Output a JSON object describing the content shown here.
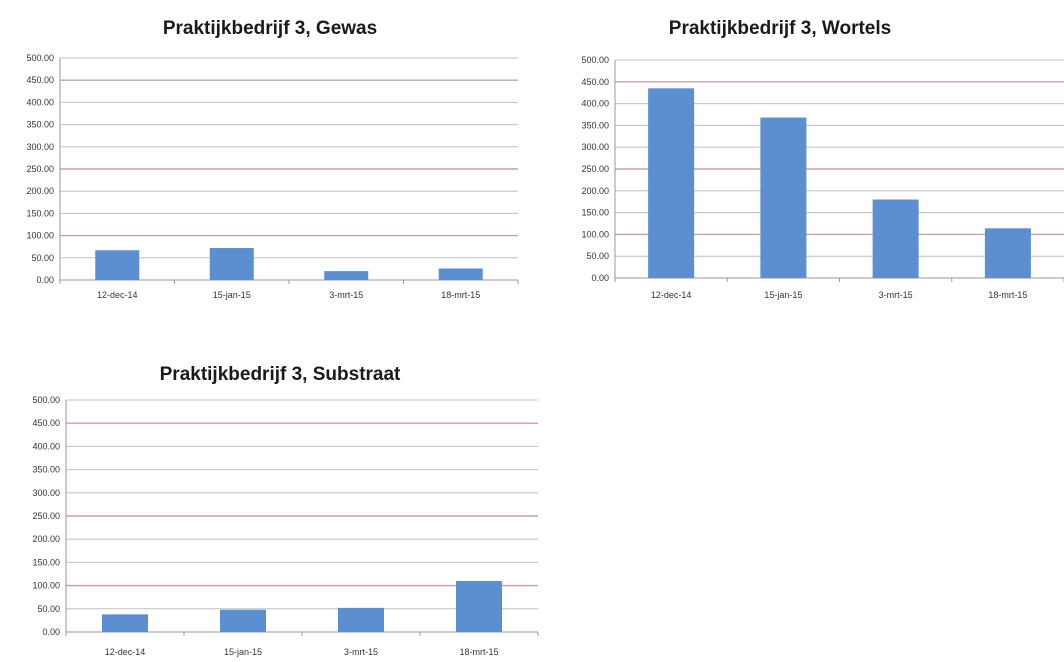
{
  "chart_data": [
    {
      "type": "bar",
      "title": "Praktijkbedrijf 3, Gewas",
      "categories": [
        "12-dec-14",
        "15-jan-15",
        "3-mrt-15",
        "18-mrt-15"
      ],
      "values": [
        67,
        72,
        20,
        26
      ],
      "ylim": [
        0,
        500
      ],
      "yticks": [
        "0.00",
        "50.00",
        "100.00",
        "150.00",
        "200.00",
        "250.00",
        "300.00",
        "350.00",
        "400.00",
        "450.00",
        "500.00"
      ],
      "xlabel": "",
      "ylabel": "",
      "grid": true,
      "bar_color": "#5b8fd0",
      "grid_color": "#c0c0c0",
      "highlight_grid_color": "#c9a0a0"
    },
    {
      "type": "bar",
      "title": "Praktijkbedrijf 3, Wortels",
      "categories": [
        "12-dec-14",
        "15-jan-15",
        "3-mrt-15",
        "18-mrt-15"
      ],
      "values": [
        435,
        368,
        180,
        114
      ],
      "ylim": [
        0,
        500
      ],
      "yticks": [
        "0.00",
        "50.00",
        "100.00",
        "150.00",
        "200.00",
        "250.00",
        "300.00",
        "350.00",
        "400.00",
        "450.00",
        "500.00"
      ],
      "xlabel": "",
      "ylabel": "",
      "grid": true,
      "bar_color": "#5b8fd0",
      "grid_color": "#c0c0c0",
      "highlight_grid_color": "#c9a0a0"
    },
    {
      "type": "bar",
      "title": "Praktijkbedrijf 3, Substraat",
      "categories": [
        "12-dec-14",
        "15-jan-15",
        "3-mrt-15",
        "18-mrt-15"
      ],
      "values": [
        38,
        48,
        52,
        110
      ],
      "ylim": [
        0,
        500
      ],
      "yticks": [
        "0.00",
        "50.00",
        "100.00",
        "150.00",
        "200.00",
        "250.00",
        "300.00",
        "350.00",
        "400.00",
        "450.00",
        "500.00"
      ],
      "xlabel": "",
      "ylabel": "",
      "grid": true,
      "bar_color": "#5b8fd0",
      "grid_color": "#c0c0c0",
      "highlight_grid_color": "#c9a0a0"
    }
  ]
}
